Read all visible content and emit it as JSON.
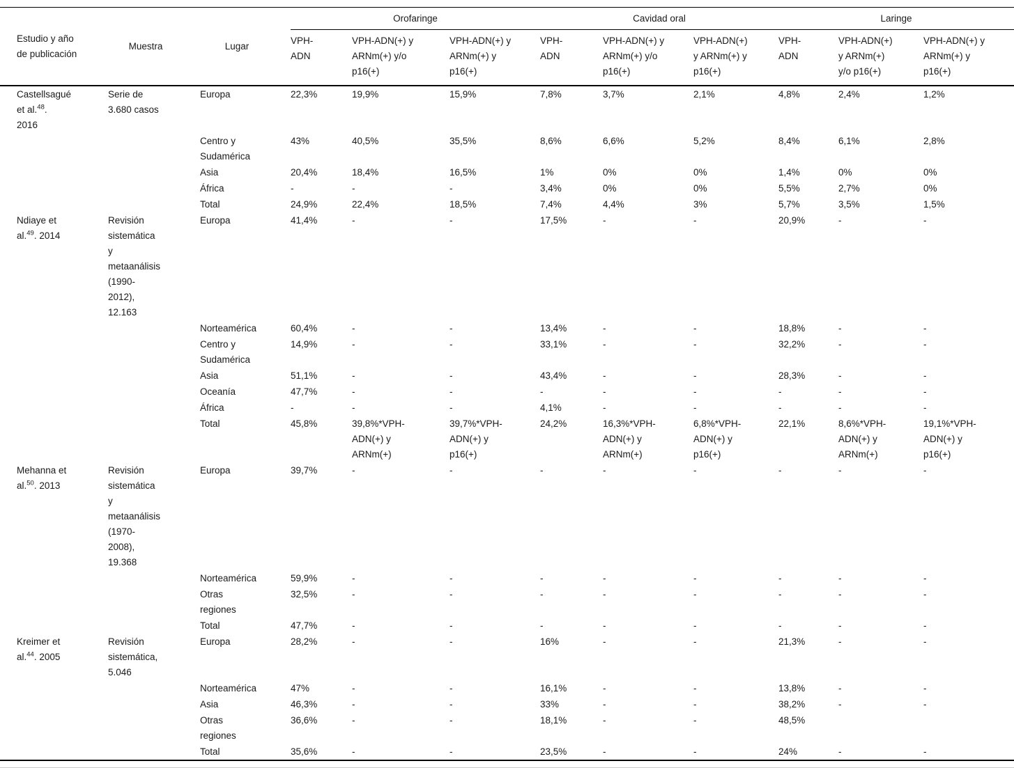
{
  "table": {
    "col_headers": {
      "study": "Estudio y año\nde publicación",
      "muestra": "Muestra",
      "lugar": "Lugar"
    },
    "groups": [
      {
        "label": "Orofaringe",
        "cols": [
          "VPH-\nADN",
          "VPH-ADN(+) y\nARNm(+) y/o\np16(+)",
          "VPH-ADN(+) y\nARNm(+) y\np16(+)"
        ]
      },
      {
        "label": "Cavidad oral",
        "cols": [
          "VPH-\nADN",
          "VPH-ADN(+) y\nARNm(+) y/o\np16(+)",
          "VPH-ADN(+)\ny ARNm(+) y\np16(+)"
        ]
      },
      {
        "label": "Laringe",
        "cols": [
          "VPH-\nADN",
          "VPH-ADN(+)\ny ARNm(+)\ny/o p16(+)",
          "VPH-ADN(+) y\nARNm(+) y\np16(+)"
        ]
      }
    ],
    "rows": [
      {
        "study_pre": "Castellsagué\net al.",
        "study_sup": "48",
        "study_post": ".\n2016",
        "muestra": "Serie de\n3.680 casos",
        "lugar": "Europa",
        "values": [
          "22,3%",
          "19,9%",
          "15,9%",
          "7,8%",
          "3,7%",
          "2,1%",
          "4,8%",
          "2,4%",
          "1,2%"
        ]
      },
      {
        "lugar": "Centro y\nSudamérica",
        "values": [
          "43%",
          "40,5%",
          "35,5%",
          "8,6%",
          "6,6%",
          "5,2%",
          "8,4%",
          "6,1%",
          "2,8%"
        ]
      },
      {
        "lugar": "Asia",
        "values": [
          "20,4%",
          "18,4%",
          "16,5%",
          "1%",
          "0%",
          "0%",
          "1,4%",
          "0%",
          "0%"
        ]
      },
      {
        "lugar": "África",
        "values": [
          "-",
          "-",
          "-",
          "3,4%",
          "0%",
          "0%",
          "5,5%",
          "2,7%",
          "0%"
        ]
      },
      {
        "lugar": "Total",
        "values": [
          "24,9%",
          "22,4%",
          "18,5%",
          "7,4%",
          "4,4%",
          "3%",
          "5,7%",
          "3,5%",
          "1,5%"
        ]
      },
      {
        "study_pre": "Ndiaye et\nal.",
        "study_sup": "49",
        "study_post": ". 2014",
        "muestra": "Revisión\nsistemática\ny\nmetaanálisis\n(1990-\n2012),\n12.163",
        "lugar": "Europa",
        "values": [
          "41,4%",
          "-",
          "-",
          "17,5%",
          "-",
          "-",
          "20,9%",
          "-",
          "-"
        ]
      },
      {
        "lugar": "Norteamérica",
        "values": [
          "60,4%",
          "-",
          "-",
          "13,4%",
          "-",
          "-",
          "18,8%",
          "-",
          "-"
        ]
      },
      {
        "lugar": "Centro y\nSudamérica",
        "values": [
          "14,9%",
          "-",
          "-",
          "33,1%",
          "-",
          "-",
          "32,2%",
          "-",
          "-"
        ]
      },
      {
        "lugar": "Asia",
        "values": [
          "51,1%",
          "-",
          "-",
          "43,4%",
          "-",
          "-",
          "28,3%",
          "-",
          "-"
        ]
      },
      {
        "lugar": "Oceanía",
        "values": [
          "47,7%",
          "-",
          "-",
          "-",
          "-",
          "-",
          "-",
          "-",
          "-"
        ]
      },
      {
        "lugar": "África",
        "values": [
          "-",
          "-",
          "-",
          "4,1%",
          "-",
          "-",
          "-",
          "-",
          "-"
        ]
      },
      {
        "lugar": "Total",
        "values": [
          "45,8%",
          "39,8%*VPH-\nADN(+) y\nARNm(+)",
          "39,7%*VPH-\nADN(+) y\np16(+)",
          "24,2%",
          "16,3%*VPH-\nADN(+) y\nARNm(+)",
          "6,8%*VPH-\nADN(+) y\np16(+)",
          "22,1%",
          "8,6%*VPH-\nADN(+) y\nARNm(+)",
          "19,1%*VPH-\nADN(+) y\np16(+)"
        ]
      },
      {
        "study_pre": "Mehanna et\nal.",
        "study_sup": "50",
        "study_post": ". 2013",
        "muestra": "Revisión\nsistemática\ny\nmetaanálisis\n(1970-\n2008),\n19.368",
        "lugar": "Europa",
        "values": [
          "39,7%",
          "-",
          "-",
          "-",
          "-",
          "-",
          "-",
          "-",
          "-"
        ]
      },
      {
        "lugar": "Norteamérica",
        "values": [
          "59,9%",
          "-",
          "-",
          "-",
          "-",
          "-",
          "-",
          "-",
          "-"
        ]
      },
      {
        "lugar": "Otras\nregiones",
        "values": [
          "32,5%",
          "-",
          "-",
          "-",
          "-",
          "-",
          "-",
          "-",
          "-"
        ]
      },
      {
        "lugar": "Total",
        "values": [
          "47,7%",
          "-",
          "-",
          "-",
          "-",
          "-",
          "-",
          "-",
          "-"
        ]
      },
      {
        "study_pre": "Kreimer et\nal.",
        "study_sup": "44",
        "study_post": ". 2005",
        "muestra": "Revisión\nsistemática,\n5.046",
        "lugar": "Europa",
        "values": [
          "28,2%",
          "-",
          "-",
          "16%",
          "-",
          "-",
          "21,3%",
          "-",
          "-"
        ]
      },
      {
        "lugar": "Norteamérica",
        "values": [
          "47%",
          "-",
          "-",
          "16,1%",
          "-",
          "-",
          "13,8%",
          "-",
          "-"
        ]
      },
      {
        "lugar": "Asia",
        "values": [
          "46,3%",
          "-",
          "-",
          "33%",
          "-",
          "-",
          "38,2%",
          "-",
          "-"
        ]
      },
      {
        "lugar": "Otras\nregiones",
        "values": [
          "36,6%",
          "-",
          "-",
          "18,1%",
          "-",
          "-",
          "48,5%",
          "",
          ""
        ]
      },
      {
        "lugar": "Total",
        "values": [
          "35,6%",
          "-",
          "-",
          "23,5%",
          "-",
          "-",
          "24%",
          "-",
          "-"
        ]
      }
    ]
  }
}
